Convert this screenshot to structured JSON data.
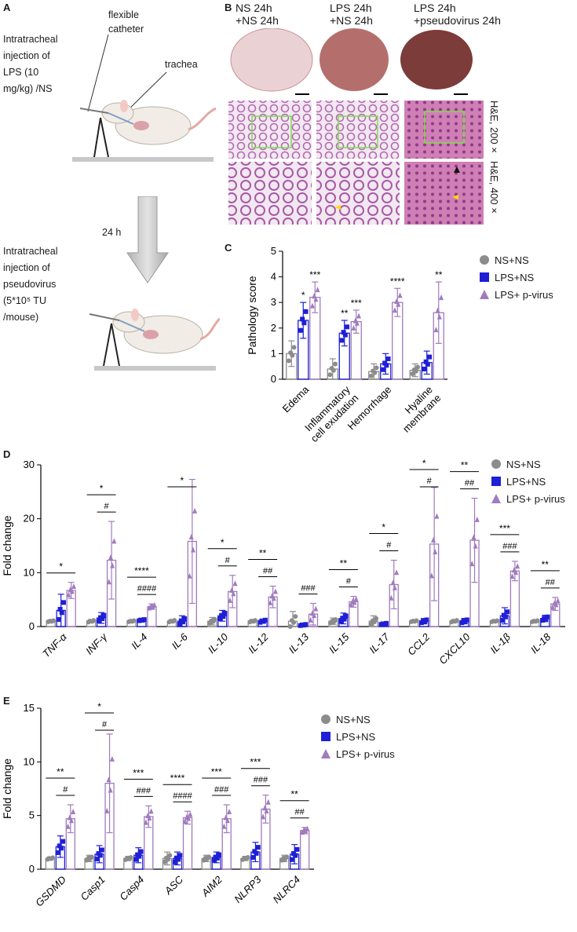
{
  "panel_labels": {
    "a": "A",
    "b": "B",
    "c": "C",
    "d": "D",
    "e": "E"
  },
  "panel_a": {
    "step1_lines": [
      "Intratracheal",
      "injection of",
      "LPS (10",
      "mg/kg) /NS"
    ],
    "catheter_label": [
      "flexible",
      "catheter"
    ],
    "trachea_label": "trachea",
    "arrow_label": "24 h",
    "step2_lines": [
      "Intratracheal",
      "injection of",
      "pseudovirus",
      "(5*10⁵ TU",
      "/mouse)"
    ]
  },
  "panel_b": {
    "conditions": [
      [
        "NS 24h",
        "+NS 24h"
      ],
      [
        "LPS 24h",
        "+NS 24h"
      ],
      [
        "LPS 24h",
        "+pseudovirus 24h"
      ]
    ],
    "row_labels": [
      "H&E, 200×",
      "H&E, 400×"
    ]
  },
  "legend": [
    "NS+NS",
    "LPS+NS",
    "LPS+ p-virus"
  ],
  "colors": {
    "ns": "#8c8c8c",
    "lps": "#1f1fd6",
    "pvirus": "#a07bbd"
  },
  "chart_data": [
    {
      "type": "bar",
      "panel": "C",
      "ylabel": "Pathology score",
      "ylim": [
        0,
        5
      ],
      "yticks": [
        "0",
        "1",
        "2",
        "3",
        "4",
        "5"
      ],
      "categories": [
        [
          "Edema"
        ],
        [
          "Inflammatory",
          "cell exudation"
        ],
        [
          "Hemorrhage"
        ],
        [
          "Hyaline",
          "membrane"
        ]
      ],
      "series": [
        {
          "name": "NS+NS",
          "values": [
            1.0,
            0.4,
            0.3,
            0.35
          ],
          "err": [
            0.5,
            0.4,
            0.3,
            0.25
          ]
        },
        {
          "name": "LPS+NS",
          "values": [
            2.3,
            1.8,
            0.6,
            0.65
          ],
          "err": [
            0.7,
            0.5,
            0.4,
            0.45
          ]
        },
        {
          "name": "LPS+ p-virus",
          "values": [
            3.2,
            2.25,
            3.0,
            2.6
          ],
          "err": [
            0.6,
            0.45,
            0.55,
            1.2
          ]
        }
      ],
      "annotations": [
        {
          "cat": 0,
          "series": 1,
          "text": "*"
        },
        {
          "cat": 0,
          "series": 2,
          "text": "***"
        },
        {
          "cat": 1,
          "series": 1,
          "text": "**"
        },
        {
          "cat": 1,
          "series": 2,
          "text": "***"
        },
        {
          "cat": 2,
          "series": 2,
          "text": "****"
        },
        {
          "cat": 3,
          "series": 2,
          "text": "**"
        }
      ]
    },
    {
      "type": "bar",
      "panel": "D",
      "ylabel": "Fold change",
      "ylim": [
        0,
        30
      ],
      "yticks": [
        "0",
        "10",
        "20",
        "30"
      ],
      "categories": [
        "TNF-α",
        "INF-γ",
        "IL-4",
        "IL-6",
        "IL-10",
        "IL-12",
        "IL-13",
        "IL-15",
        "IL-17",
        "CCL2",
        "CXCL10",
        "IL-1β",
        "IL-18"
      ],
      "series": [
        {
          "name": "NS+NS",
          "values": [
            1.0,
            1.0,
            1.0,
            1.0,
            1.0,
            1.0,
            1.0,
            1.0,
            1.0,
            1.0,
            1.0,
            1.0,
            1.0
          ],
          "err": [
            0.2,
            0.3,
            0.2,
            0.3,
            0.7,
            0.3,
            1.8,
            0.6,
            1.0,
            0.2,
            0.3,
            0.2,
            0.2
          ]
        },
        {
          "name": "LPS+NS",
          "values": [
            3.0,
            1.6,
            1.2,
            1.0,
            2.0,
            1.0,
            0.3,
            1.5,
            0.5,
            1.0,
            1.0,
            2.0,
            1.5
          ],
          "err": [
            3.0,
            1.0,
            0.2,
            1.0,
            1.0,
            0.4,
            0.2,
            1.0,
            0.2,
            0.5,
            0.5,
            1.5,
            0.6
          ]
        },
        {
          "name": "LPS+ p-virus",
          "values": [
            6.7,
            12.3,
            3.7,
            15.8,
            6.5,
            5.5,
            2.3,
            4.6,
            7.8,
            15.3,
            16.0,
            10.3,
            4.2
          ]
        }
      ],
      "pvirus_err": [
        1.5,
        7.2,
        0.5,
        11.5,
        3.0,
        2.0,
        2.0,
        1.0,
        4.5,
        10.5,
        7.8,
        1.8,
        1.2
      ],
      "brackets": [
        {
          "cat": 0,
          "long": "*"
        },
        {
          "cat": 1,
          "long": "*",
          "short": "#"
        },
        {
          "cat": 2,
          "long": "****",
          "short": "####"
        },
        {
          "cat": 3,
          "long": "*"
        },
        {
          "cat": 4,
          "long": "*",
          "short": "#"
        },
        {
          "cat": 5,
          "long": "**",
          "short": "##"
        },
        {
          "cat": 6,
          "short": "###"
        },
        {
          "cat": 7,
          "long": "**",
          "short": "#"
        },
        {
          "cat": 8,
          "long": "*",
          "short": "#"
        },
        {
          "cat": 9,
          "long": "*",
          "short": "#"
        },
        {
          "cat": 10,
          "long": "**",
          "short": "##"
        },
        {
          "cat": 11,
          "long": "***",
          "short": "###"
        },
        {
          "cat": 12,
          "long": "**",
          "short": "##"
        }
      ]
    },
    {
      "type": "bar",
      "panel": "E",
      "ylabel": "Fold change",
      "ylim": [
        0,
        15
      ],
      "yticks": [
        "0",
        "5",
        "10",
        "15"
      ],
      "categories": [
        "GSDMD",
        "Casp1",
        "Casp4",
        "ASC",
        "AIM2",
        "NLRP3",
        "NLRC4"
      ],
      "series": [
        {
          "name": "NS+NS",
          "values": [
            1.0,
            1.0,
            1.0,
            1.0,
            1.0,
            1.0,
            1.0
          ],
          "err": [
            0.15,
            0.3,
            0.2,
            0.6,
            0.3,
            0.2,
            0.3
          ]
        },
        {
          "name": "LPS+NS",
          "values": [
            2.1,
            1.4,
            1.3,
            1.0,
            1.1,
            1.6,
            1.4
          ],
          "err": [
            1.0,
            0.8,
            0.7,
            0.6,
            0.5,
            0.9,
            0.9
          ]
        },
        {
          "name": "LPS+ p-virus",
          "values": [
            4.7,
            8.0,
            4.9,
            4.8,
            4.7,
            5.6,
            3.6
          ],
          "err": [
            1.3,
            4.6,
            1.0,
            0.6,
            1.3,
            1.3,
            0.3
          ]
        }
      ],
      "brackets": [
        {
          "cat": 0,
          "long": "**",
          "short": "#"
        },
        {
          "cat": 1,
          "long": "*",
          "short": "#"
        },
        {
          "cat": 2,
          "long": "***",
          "short": "###"
        },
        {
          "cat": 3,
          "long": "****",
          "short": "####"
        },
        {
          "cat": 4,
          "long": "***",
          "short": "###"
        },
        {
          "cat": 5,
          "long": "***",
          "short": "###"
        },
        {
          "cat": 6,
          "long": "**",
          "short": "##"
        }
      ]
    }
  ]
}
